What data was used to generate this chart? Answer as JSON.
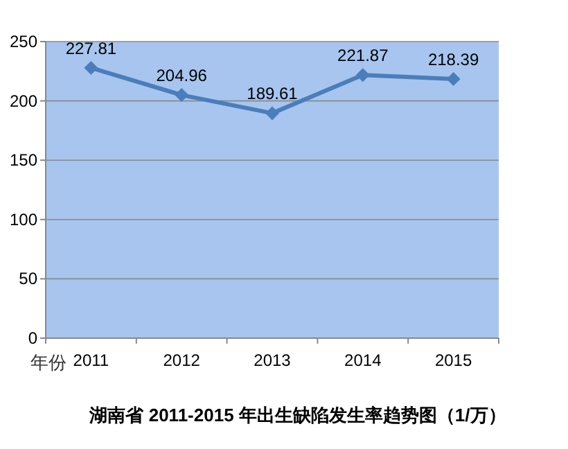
{
  "chart_data": {
    "type": "line",
    "title": "湖南省 2011-2015 年出生缺陷发生率趋势图（1/万）",
    "xlabel": "年份",
    "categories": [
      "2011",
      "2012",
      "2013",
      "2014",
      "2015"
    ],
    "series": [
      {
        "color": "#4a7ebb",
        "values": [
          227.81,
          204.96,
          189.61,
          221.87,
          218.39
        ]
      }
    ],
    "ylim": [
      0,
      250
    ],
    "yticks": [
      0,
      50,
      100,
      150,
      200,
      250
    ],
    "grid": "y",
    "marker": "diamond",
    "line_style": "solid",
    "data_labels": true
  }
}
